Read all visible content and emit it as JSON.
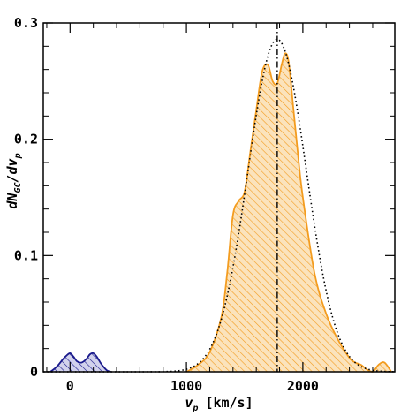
{
  "chart_data": {
    "type": "area",
    "xlabel_main": "v",
    "xlabel_sub": "p",
    "xlabel_units": "[km/s]",
    "ylabel_main": "dN",
    "ylabel_sub1": "GC",
    "ylabel_mid": "/dv",
    "ylabel_sub2": "p",
    "xlim": [
      -230,
      2790
    ],
    "ylim": [
      0,
      0.3
    ],
    "x_ticks": [
      0,
      1000,
      2000
    ],
    "x_ticklabels": [
      "0",
      "1000",
      "2000"
    ],
    "y_ticks": [
      0,
      0.1,
      0.2,
      0.3
    ],
    "y_ticklabels": [
      "0",
      "0.1",
      "0.2",
      "0.3"
    ],
    "grid": false,
    "vline_x": 1780,
    "colors": {
      "orange": "#f39c1f",
      "blue": "#1a1a8c",
      "fill_orange": "#fbe3bc",
      "fill_blue": "#d2d2ec"
    },
    "series": [
      {
        "style": "orange-solid-hatched",
        "x": [
          1000,
          1100,
          1200,
          1300,
          1350,
          1400,
          1450,
          1500,
          1550,
          1600,
          1650,
          1700,
          1740,
          1780,
          1820,
          1850,
          1880,
          1920,
          1960,
          2000,
          2100,
          2200,
          2300,
          2400,
          2450,
          2500,
          2550,
          2600,
          2650,
          2700,
          2760
        ],
        "y": [
          0.0,
          0.006,
          0.017,
          0.047,
          0.085,
          0.135,
          0.147,
          0.155,
          0.19,
          0.225,
          0.258,
          0.264,
          0.25,
          0.248,
          0.265,
          0.274,
          0.265,
          0.225,
          0.185,
          0.15,
          0.085,
          0.05,
          0.028,
          0.012,
          0.008,
          0.006,
          0.002,
          0.0,
          0.006,
          0.008,
          0.0
        ]
      },
      {
        "style": "blue-solid-hatched",
        "x": [
          -170,
          -130,
          -100,
          -60,
          -30,
          0,
          30,
          60,
          100,
          140,
          170,
          200,
          230,
          260,
          290,
          320,
          350
        ],
        "y": [
          0.0,
          0.003,
          0.006,
          0.011,
          0.014,
          0.016,
          0.013,
          0.009,
          0.008,
          0.011,
          0.015,
          0.016,
          0.013,
          0.008,
          0.004,
          0.001,
          0.0
        ]
      },
      {
        "style": "black-dotted",
        "type": "gaussian",
        "mean": 1780,
        "sigma": 250,
        "amplitude": 0.286
      }
    ]
  }
}
